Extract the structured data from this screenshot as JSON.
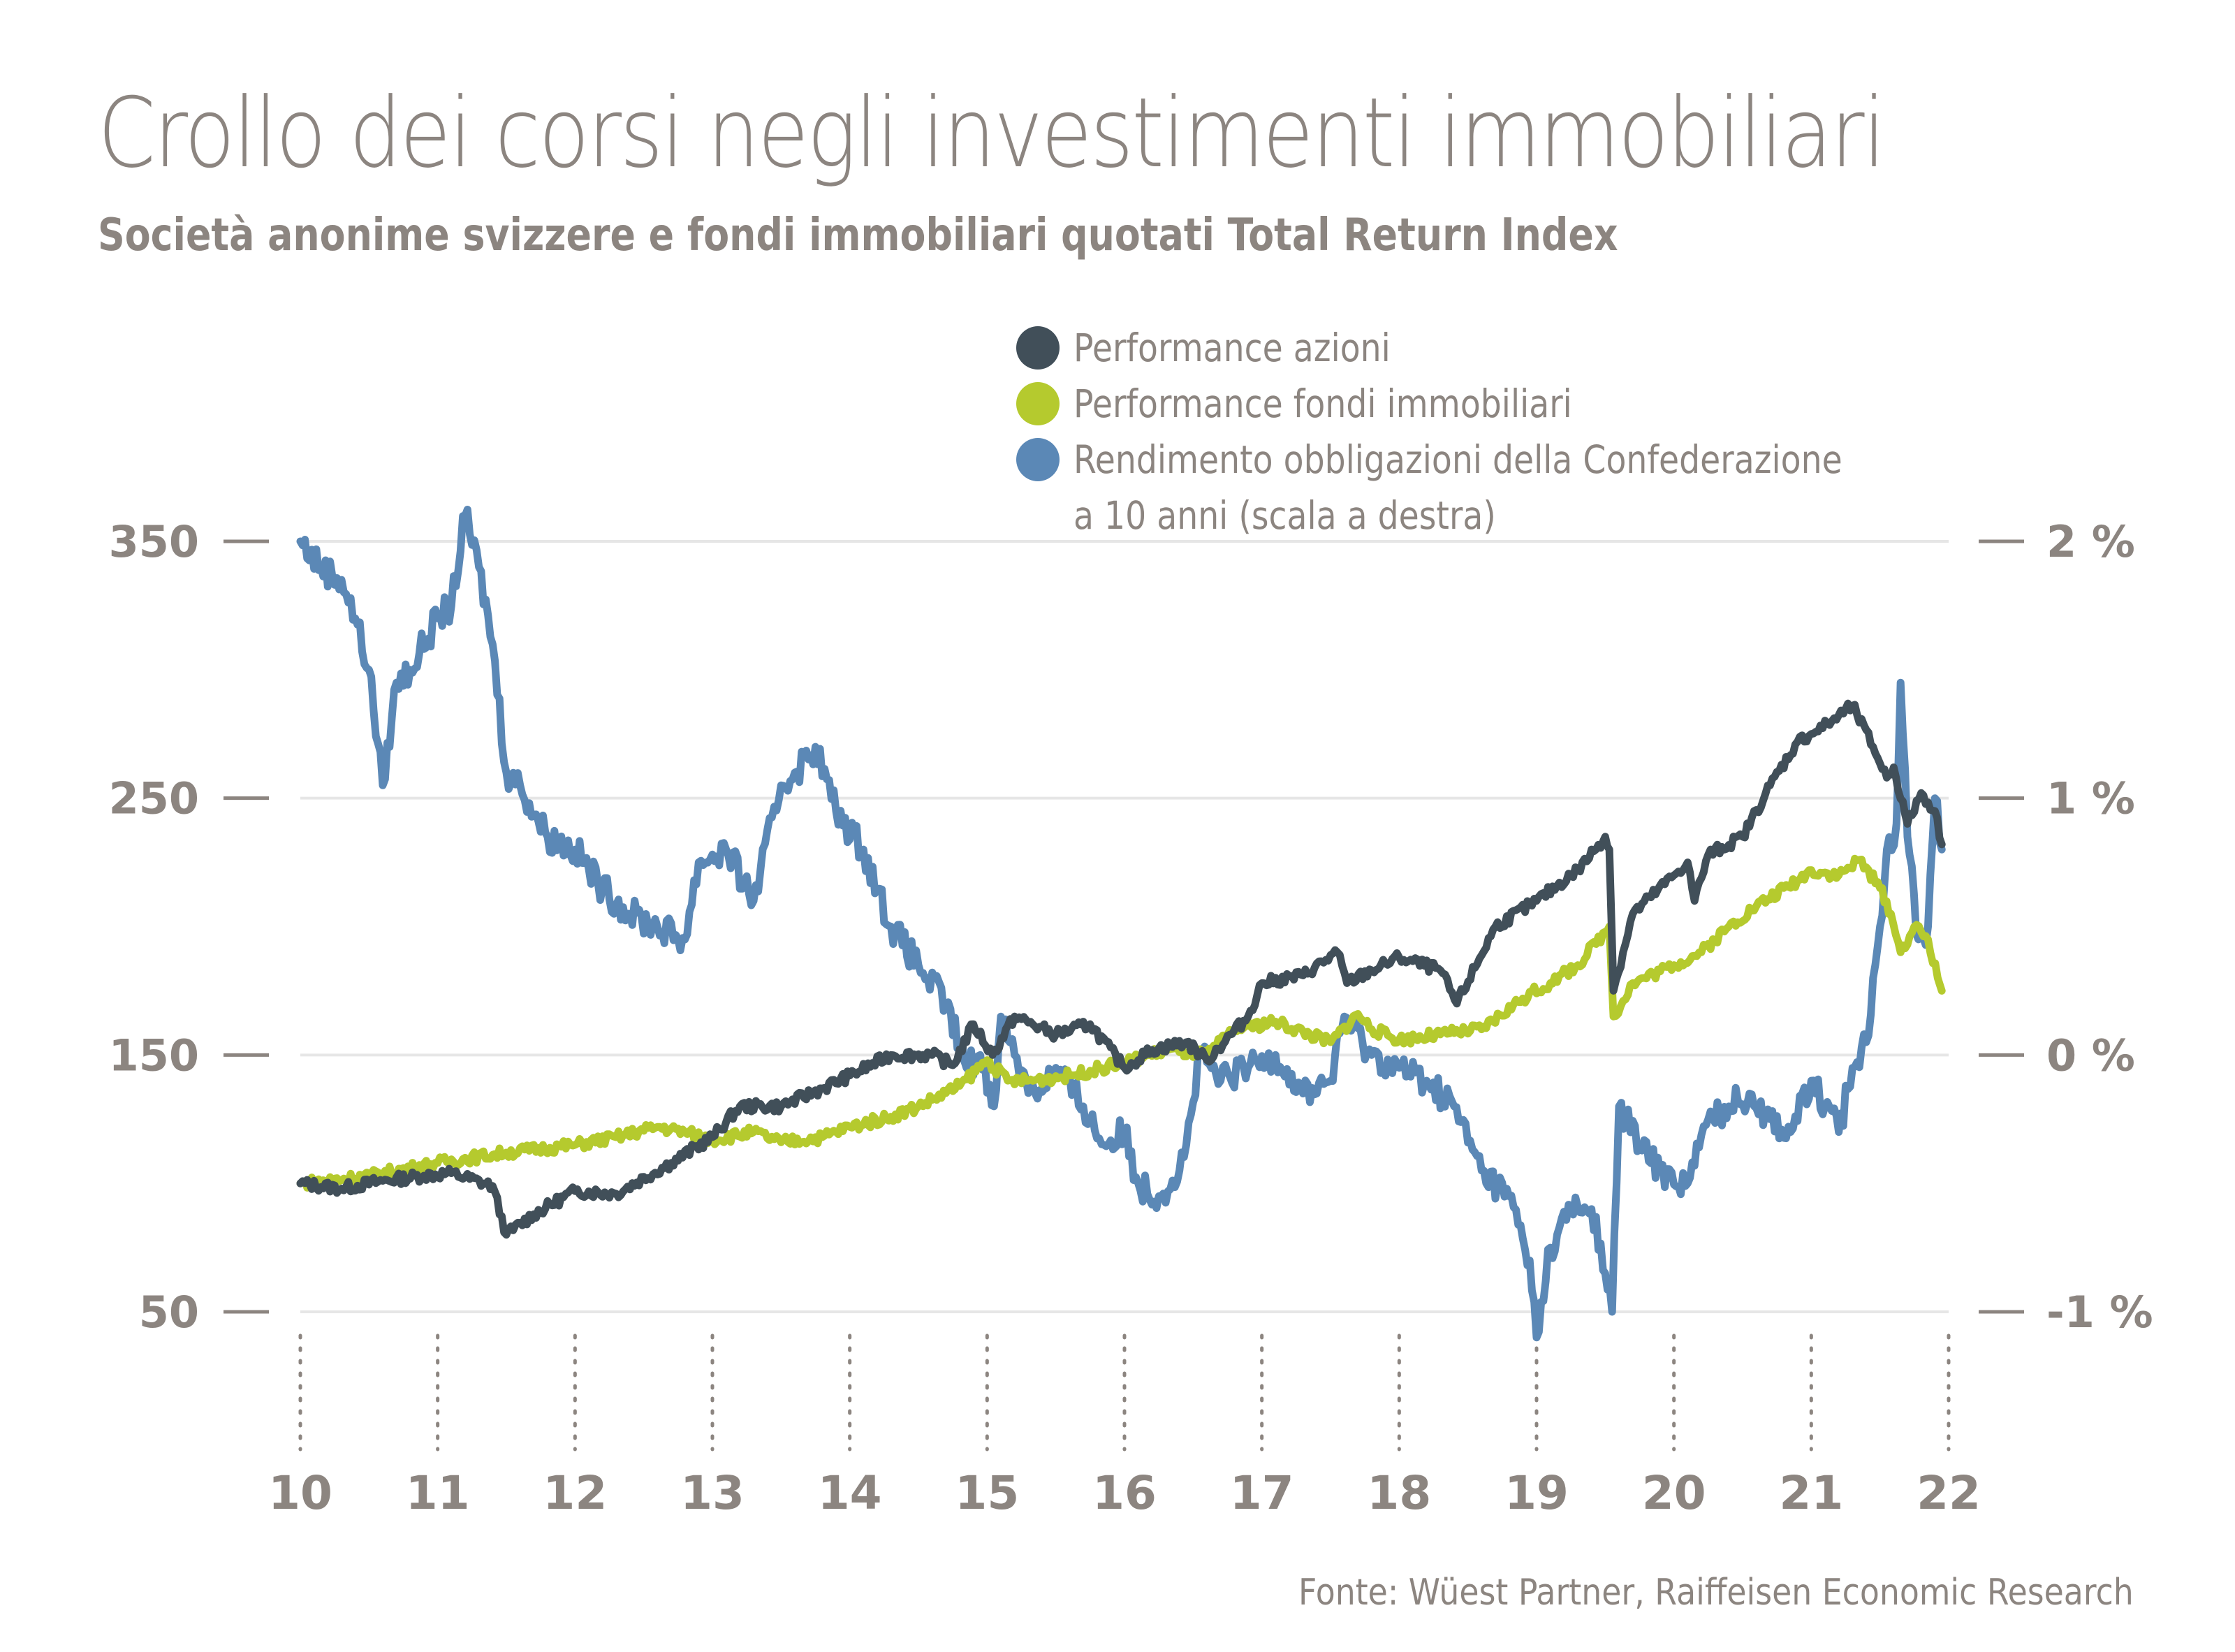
{
  "header": {
    "title": "Crollo dei corsi negli investimenti immobiliari",
    "subtitle": "Società anonime svizzere e fondi immobiliari quotati Total Return Index"
  },
  "legend": {
    "items": [
      {
        "label": "Performance azioni",
        "color": "#414f59"
      },
      {
        "label": "Performance fondi immobiliari",
        "color": "#b5ca2e"
      },
      {
        "label": "Rendimento obbligazioni della Confederazione",
        "label_line2": "a 10 anni (scala a destra)",
        "color": "#5b88b6"
      }
    ]
  },
  "footer": {
    "source": "Fonte: Wüest Partner, Raiffeisen Economic Research"
  },
  "chart_data": {
    "type": "line",
    "title": "Crollo dei corsi negli investimenti immobiliari",
    "subtitle": "Società anonime svizzere e fondi immobiliari quotati Total Return Index",
    "xlabel": "",
    "ylabel_left": "",
    "ylabel_right": "",
    "x_ticks": [
      "10",
      "11",
      "12",
      "13",
      "14",
      "15",
      "16",
      "17",
      "18",
      "19",
      "20",
      "21",
      "22"
    ],
    "x_range": [
      2010,
      2022
    ],
    "y_left": {
      "range": [
        50,
        350
      ],
      "ticks": [
        350,
        250,
        150,
        50
      ],
      "tick_labels": [
        "350",
        "250",
        "150",
        "50"
      ]
    },
    "y_right": {
      "range": [
        -1,
        2
      ],
      "ticks": [
        2,
        1,
        0,
        -1
      ],
      "tick_labels": [
        "2 %",
        "1 %",
        "0 %",
        "-1 %"
      ]
    },
    "grid": true,
    "legend_position": "top-right",
    "series": [
      {
        "name": "Performance azioni",
        "axis": "left",
        "color": "#414f59",
        "x": [
          2010.0,
          2010.3,
          2010.6,
          2010.9,
          2011.1,
          2011.4,
          2011.5,
          2011.7,
          2012.0,
          2012.3,
          2012.7,
          2013.0,
          2013.2,
          2013.5,
          2013.8,
          2014.0,
          2014.3,
          2014.6,
          2014.75,
          2014.9,
          2015.04,
          2015.2,
          2015.5,
          2015.75,
          2016.0,
          2016.2,
          2016.45,
          2016.6,
          2016.9,
          2017.0,
          2017.3,
          2017.55,
          2017.62,
          2017.8,
          2018.0,
          2018.3,
          2018.42,
          2018.7,
          2019.0,
          2019.3,
          2019.5,
          2019.53,
          2019.56,
          2019.7,
          2020.0,
          2020.1,
          2020.15,
          2020.25,
          2020.5,
          2020.7,
          2020.9,
          2021.0,
          2021.15,
          2021.3,
          2021.45,
          2021.55,
          2021.6,
          2021.7,
          2021.8,
          2021.9,
          2021.95
        ],
        "values": [
          100,
          98,
          101,
          103,
          104,
          99,
          80,
          88,
          97,
          96,
          108,
          118,
          130,
          130,
          137,
          142,
          150,
          150,
          146,
          162,
          150,
          165,
          158,
          162,
          145,
          152,
          155,
          148,
          165,
          178,
          181,
          190,
          178,
          183,
          188,
          183,
          170,
          200,
          210,
          222,
          235,
          230,
          175,
          205,
          220,
          225,
          210,
          228,
          235,
          255,
          272,
          275,
          280,
          286,
          270,
          258,
          262,
          240,
          252,
          245,
          232
        ],
        "y_unit": "index"
      },
      {
        "name": "Performance fondi immobiliari",
        "axis": "left",
        "color": "#b5ca2e",
        "x": [
          2010.0,
          2010.5,
          2011.0,
          2011.5,
          2012.0,
          2012.3,
          2012.6,
          2012.8,
          2013.0,
          2013.3,
          2013.5,
          2013.8,
          2014.0,
          2014.3,
          2014.5,
          2014.8,
          2015.0,
          2015.15,
          2015.3,
          2015.6,
          2016.0,
          2016.3,
          2016.6,
          2016.8,
          2017.1,
          2017.5,
          2017.7,
          2017.8,
          2018.0,
          2018.3,
          2018.6,
          2018.9,
          2019.1,
          2019.3,
          2019.5,
          2019.53,
          2019.56,
          2019.7,
          2020.0,
          2020.2,
          2020.4,
          2020.6,
          2020.9,
          2021.0,
          2021.2,
          2021.35,
          2021.5,
          2021.58,
          2021.65,
          2021.75,
          2021.85,
          2021.92,
          2021.95
        ],
        "values": [
          100,
          103,
          108,
          112,
          115,
          118,
          122,
          120,
          117,
          120,
          116,
          118,
          122,
          126,
          130,
          138,
          148,
          140,
          140,
          142,
          147,
          152,
          150,
          160,
          163,
          155,
          166,
          160,
          156,
          158,
          160,
          172,
          178,
          185,
          198,
          200,
          165,
          178,
          185,
          190,
          200,
          208,
          218,
          222,
          220,
          226,
          215,
          205,
          190,
          200,
          195,
          180,
          175
        ],
        "y_unit": "index"
      },
      {
        "name": "Rendimento obbligazioni della Confederazione a 10 anni (scala a destra)",
        "axis": "right",
        "color": "#5b88b6",
        "x": [
          2010.0,
          2010.15,
          2010.3,
          2010.4,
          2010.5,
          2010.6,
          2010.7,
          2010.8,
          2011.0,
          2011.1,
          2011.2,
          2011.3,
          2011.4,
          2011.5,
          2011.6,
          2011.8,
          2012.0,
          2012.2,
          2012.4,
          2012.6,
          2012.8,
          2012.9,
          2013.1,
          2013.3,
          2013.5,
          2013.6,
          2013.75,
          2013.9,
          2014.1,
          2014.3,
          2014.5,
          2014.7,
          2014.85,
          2014.95,
          2015.05,
          2015.1,
          2015.2,
          2015.35,
          2015.5,
          2015.7,
          2015.85,
          2016.0,
          2016.1,
          2016.25,
          2016.4,
          2016.45,
          2016.55,
          2016.7,
          2016.9,
          2017.1,
          2017.3,
          2017.5,
          2017.6,
          2017.8,
          2018.0,
          2018.2,
          2018.4,
          2018.6,
          2018.8,
          2018.95,
          2019.0,
          2019.1,
          2019.25,
          2019.4,
          2019.5,
          2019.55,
          2019.6,
          2019.75,
          2019.9,
          2020.1,
          2020.25,
          2020.4,
          2020.55,
          2020.7,
          2020.85,
          2021.0,
          2021.1,
          2021.2,
          2021.3,
          2021.4,
          2021.45,
          2021.5,
          2021.55,
          2021.62,
          2021.65,
          2021.7,
          2021.78,
          2021.85,
          2021.9,
          2021.95
        ],
        "values": [
          2.0,
          1.9,
          1.85,
          1.7,
          1.5,
          1.05,
          1.45,
          1.5,
          1.7,
          1.75,
          2.1,
          1.9,
          1.6,
          1.1,
          1.05,
          0.85,
          0.8,
          0.65,
          0.55,
          0.5,
          0.45,
          0.75,
          0.8,
          0.6,
          1.05,
          1.1,
          1.2,
          0.95,
          0.8,
          0.5,
          0.35,
          0.2,
          -0.05,
          0.0,
          -0.2,
          0.15,
          0.0,
          -0.15,
          -0.05,
          -0.2,
          -0.35,
          -0.3,
          -0.5,
          -0.55,
          -0.45,
          -0.35,
          0.0,
          -0.1,
          -0.05,
          0.0,
          -0.15,
          -0.1,
          0.15,
          0.0,
          -0.05,
          -0.1,
          -0.2,
          -0.45,
          -0.55,
          -0.8,
          -1.1,
          -0.75,
          -0.6,
          -0.6,
          -0.85,
          -1.0,
          -0.2,
          -0.35,
          -0.45,
          -0.5,
          -0.25,
          -0.2,
          -0.15,
          -0.25,
          -0.3,
          -0.1,
          -0.2,
          -0.3,
          -0.05,
          0.05,
          0.3,
          0.5,
          0.8,
          0.9,
          1.45,
          0.85,
          0.45,
          0.5,
          1.0,
          0.8
        ],
        "y_unit": "%"
      }
    ]
  }
}
